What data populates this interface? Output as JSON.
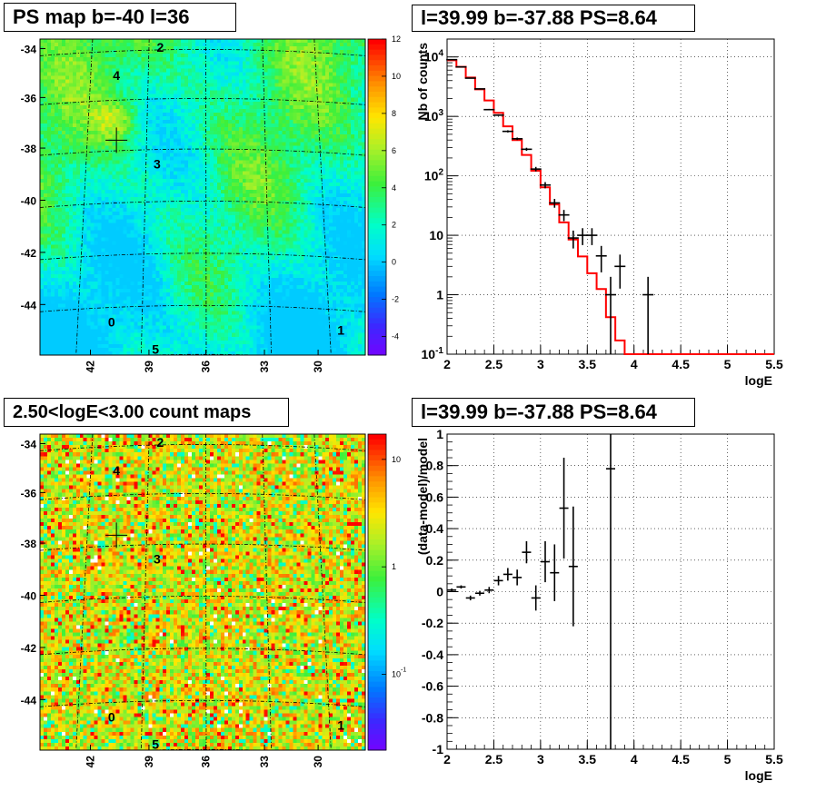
{
  "chart_data": [
    {
      "type": "heatmap",
      "title": "PS map b=-40 l=36",
      "x_ticks": [
        "42",
        "39",
        "36",
        "33",
        "30"
      ],
      "y_ticks": [
        "-34",
        "-36",
        "-38",
        "-40",
        "-42",
        "-44"
      ],
      "colorbar_ticks": [
        "12",
        "10",
        "8",
        "6",
        "4",
        "2",
        "0",
        "-2",
        "-4"
      ],
      "zlim": [
        -5,
        12
      ],
      "source_labels": [
        "0",
        "1",
        "2",
        "3",
        "4",
        "5"
      ],
      "marker": "cross"
    },
    {
      "type": "line",
      "title": "l=39.99 b=-37.88 PS=8.64",
      "xlabel": "logE",
      "ylabel": "Nb of counts",
      "xlim": [
        2,
        5.5
      ],
      "ylim": [
        0.1,
        20000
      ],
      "log_y": true,
      "grid": true,
      "x_ticks": [
        "2",
        "2.5",
        "3",
        "3.5",
        "4",
        "4.5",
        "5",
        "5.5"
      ],
      "y_ticks": [
        "10^-1",
        "1",
        "10",
        "10^2",
        "10^3",
        "10^4"
      ],
      "data_points": [
        {
          "x": 2.05,
          "y": 9000
        },
        {
          "x": 2.15,
          "y": 6800
        },
        {
          "x": 2.25,
          "y": 4400
        },
        {
          "x": 2.35,
          "y": 2900
        },
        {
          "x": 2.45,
          "y": 1300
        },
        {
          "x": 2.55,
          "y": 1050
        },
        {
          "x": 2.65,
          "y": 560
        },
        {
          "x": 2.75,
          "y": 420
        },
        {
          "x": 2.85,
          "y": 280
        },
        {
          "x": 2.95,
          "y": 130
        },
        {
          "x": 3.05,
          "y": 70
        },
        {
          "x": 3.15,
          "y": 35
        },
        {
          "x": 3.25,
          "y": 22
        },
        {
          "x": 3.35,
          "y": 9
        },
        {
          "x": 3.45,
          "y": 10
        },
        {
          "x": 3.55,
          "y": 10
        },
        {
          "x": 3.65,
          "y": 4.5
        },
        {
          "x": 3.75,
          "y": 1
        },
        {
          "x": 3.85,
          "y": 3
        },
        {
          "x": 4.15,
          "y": 1
        }
      ],
      "model_step": [
        {
          "x": 2.0,
          "y": 8800
        },
        {
          "x": 2.1,
          "y": 6800
        },
        {
          "x": 2.2,
          "y": 4500
        },
        {
          "x": 2.3,
          "y": 2850
        },
        {
          "x": 2.4,
          "y": 1850
        },
        {
          "x": 2.5,
          "y": 1150
        },
        {
          "x": 2.6,
          "y": 680
        },
        {
          "x": 2.7,
          "y": 400
        },
        {
          "x": 2.8,
          "y": 225
        },
        {
          "x": 2.9,
          "y": 122
        },
        {
          "x": 3.0,
          "y": 64
        },
        {
          "x": 3.1,
          "y": 33
        },
        {
          "x": 3.2,
          "y": 16.5
        },
        {
          "x": 3.3,
          "y": 8.5
        },
        {
          "x": 3.4,
          "y": 4.4
        },
        {
          "x": 3.5,
          "y": 2.3
        },
        {
          "x": 3.6,
          "y": 1.25
        },
        {
          "x": 3.7,
          "y": 0.42
        },
        {
          "x": 3.8,
          "y": 0.17
        },
        {
          "x": 3.9,
          "y": 0.1
        },
        {
          "x": 5.5,
          "y": 0.1
        }
      ],
      "colors": {
        "data": "#000000",
        "model": "#ff0000"
      }
    },
    {
      "type": "heatmap",
      "title": "2.50<logE<3.00 count maps",
      "x_ticks": [
        "42",
        "39",
        "36",
        "33",
        "30"
      ],
      "y_ticks": [
        "-34",
        "-36",
        "-38",
        "-40",
        "-42",
        "-44"
      ],
      "colorbar_ticks": [
        "10",
        "1",
        "10^-1"
      ],
      "log_z": true,
      "source_labels": [
        "0",
        "1",
        "2",
        "3",
        "4",
        "5"
      ],
      "marker": "cross"
    },
    {
      "type": "scatter",
      "title": "l=39.99 b=-37.88 PS=8.64",
      "xlabel": "logE",
      "ylabel": "(data-model)/model",
      "xlim": [
        2,
        5.5
      ],
      "ylim": [
        -1,
        1
      ],
      "grid": true,
      "x_ticks": [
        "2",
        "2.5",
        "3",
        "3.5",
        "4",
        "4.5",
        "5",
        "5.5"
      ],
      "y_ticks": [
        "1",
        "0.8",
        "0.6",
        "0.4",
        "0.2",
        "0",
        "-0.2",
        "-0.4",
        "-0.6",
        "-0.8",
        "-1"
      ],
      "data_points": [
        {
          "x": 2.05,
          "y": 0.01,
          "err": 0.01
        },
        {
          "x": 2.15,
          "y": 0.03,
          "err": 0.01
        },
        {
          "x": 2.25,
          "y": -0.04,
          "err": 0.015
        },
        {
          "x": 2.35,
          "y": -0.01,
          "err": 0.015
        },
        {
          "x": 2.45,
          "y": 0.01,
          "err": 0.02
        },
        {
          "x": 2.55,
          "y": 0.07,
          "err": 0.03
        },
        {
          "x": 2.65,
          "y": 0.11,
          "err": 0.04
        },
        {
          "x": 2.75,
          "y": 0.09,
          "err": 0.05
        },
        {
          "x": 2.85,
          "y": 0.25,
          "err": 0.07
        },
        {
          "x": 2.95,
          "y": -0.04,
          "err": 0.08
        },
        {
          "x": 3.05,
          "y": 0.19,
          "err": 0.13
        },
        {
          "x": 3.15,
          "y": 0.12,
          "err": 0.18
        },
        {
          "x": 3.25,
          "y": 0.53,
          "err": 0.32
        },
        {
          "x": 3.35,
          "y": 0.16,
          "err": 0.38
        },
        {
          "x": 3.75,
          "y": 0.78,
          "err": 1.9
        }
      ],
      "colors": {
        "data": "#000000"
      }
    }
  ]
}
